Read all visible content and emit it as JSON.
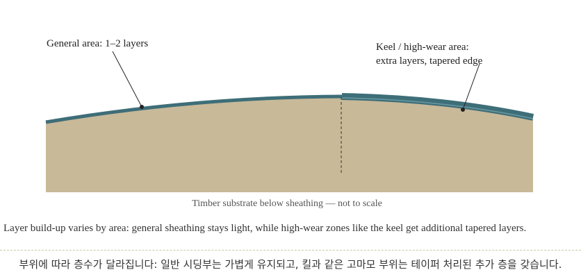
{
  "labels": {
    "general": "General area: 1–2 layers",
    "keel_line1": "Keel / high-wear area:",
    "keel_line2": "extra layers, tapered edge",
    "substrate": "Timber substrate below sheathing — not to scale"
  },
  "caption_en": "Layer build-up varies by area: general sheathing stays light, while high-wear zones like the keel get additional tapered layers.",
  "caption_ko": "부위에 따라 층수가 달라집니다: 일반 시딩부는 가볍게 유지되고, 킬과 같은 고마모 부위는 테이퍼 처리된 추가 층을 갖습니다."
}
